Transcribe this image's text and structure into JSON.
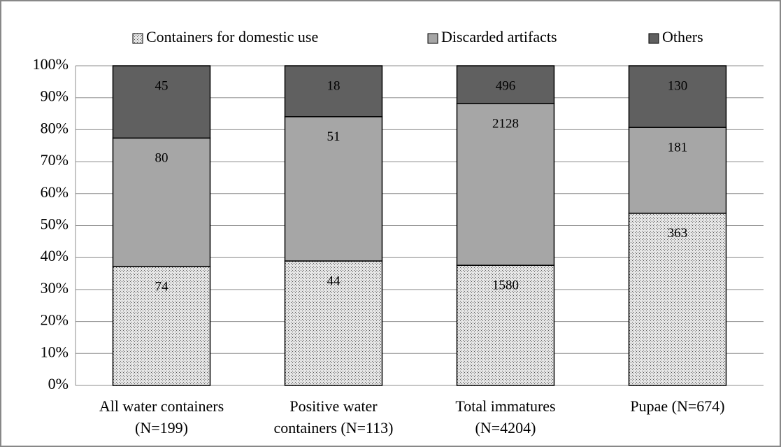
{
  "chart_data": {
    "type": "bar",
    "stacked": "percent",
    "categories": [
      [
        "All water containers",
        "(N=199)"
      ],
      [
        "Positive water",
        "containers (N=113)"
      ],
      [
        "Total immatures",
        "(N=4204)"
      ],
      [
        "Pupae (N=674)"
      ]
    ],
    "series": [
      {
        "name": "Containers for domestic use",
        "color": "#e6e6e6",
        "pattern": "dotted",
        "values": [
          74,
          44,
          1580,
          363
        ]
      },
      {
        "name": "Discarded artifacts",
        "color": "#a6a6a6",
        "values": [
          80,
          51,
          2128,
          181
        ]
      },
      {
        "name": "Others",
        "color": "#606060",
        "values": [
          45,
          18,
          496,
          130
        ]
      }
    ],
    "ylim": [
      0,
      100
    ],
    "yticks": [
      {
        "value": 0,
        "label": "0%"
      },
      {
        "value": 10,
        "label": "10%"
      },
      {
        "value": 20,
        "label": "20%"
      },
      {
        "value": 30,
        "label": "30%"
      },
      {
        "value": 40,
        "label": "40%"
      },
      {
        "value": 50,
        "label": "50%"
      },
      {
        "value": 60,
        "label": "60%"
      },
      {
        "value": 70,
        "label": "70%"
      },
      {
        "value": 80,
        "label": "80%"
      },
      {
        "value": 90,
        "label": "90%"
      },
      {
        "value": 100,
        "label": "100%"
      }
    ],
    "grid": true,
    "legend": "top"
  }
}
